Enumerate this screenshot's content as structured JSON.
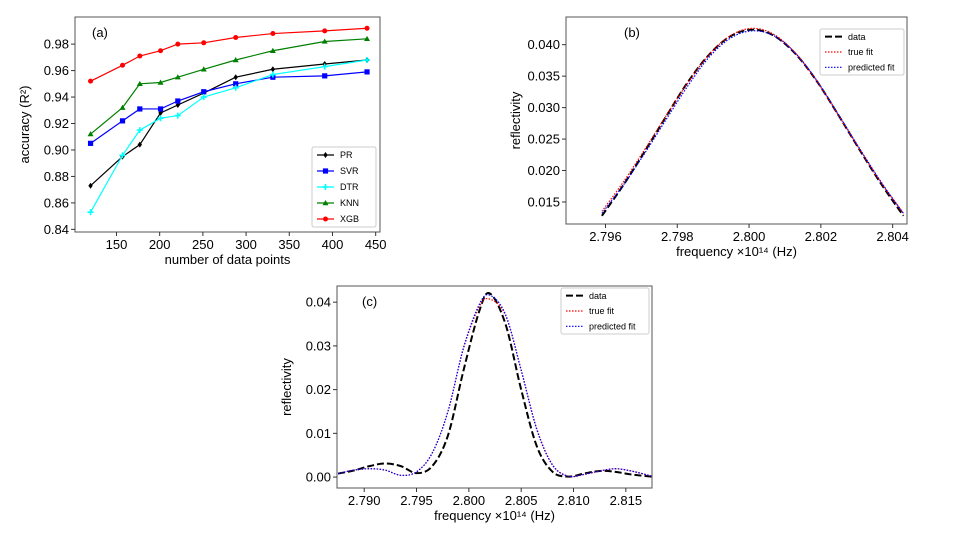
{
  "chart_data": [
    {
      "type": "line",
      "panel_label": "(a)",
      "xlabel": "number of data points",
      "ylabel": "accuracy (R²)",
      "xlim": [
        102,
        455
      ],
      "ylim": [
        0.838,
        1.0005
      ],
      "xticks": [
        150,
        200,
        250,
        300,
        350,
        400,
        450
      ],
      "yticks": [
        0.84,
        0.86,
        0.88,
        0.9,
        0.92,
        0.94,
        0.96,
        0.98
      ],
      "ytick_decimals": 2,
      "legend_position": "bottom-right",
      "grid": false,
      "x": [
        120,
        157,
        177,
        201,
        221,
        251,
        288,
        331,
        391,
        440
      ],
      "series": [
        {
          "name": "PR",
          "color": "#000000",
          "marker": "diamond",
          "values": [
            0.873,
            0.895,
            0.904,
            0.928,
            0.934,
            0.943,
            0.955,
            0.961,
            0.965,
            0.968
          ]
        },
        {
          "name": "SVR",
          "color": "#0000ff",
          "marker": "square",
          "values": [
            0.905,
            0.922,
            0.931,
            0.931,
            0.937,
            0.944,
            0.95,
            0.955,
            0.956,
            0.959
          ]
        },
        {
          "name": "DTR",
          "color": "#00ffff",
          "marker": "plus",
          "values": [
            0.853,
            0.896,
            0.915,
            0.924,
            0.926,
            0.94,
            0.947,
            0.957,
            0.963,
            0.968
          ]
        },
        {
          "name": "KNN",
          "color": "#008000",
          "marker": "triangle",
          "values": [
            0.912,
            0.932,
            0.95,
            0.951,
            0.955,
            0.961,
            0.968,
            0.975,
            0.982,
            0.984
          ]
        },
        {
          "name": "XGB",
          "color": "#ff0000",
          "marker": "circle",
          "values": [
            0.952,
            0.964,
            0.971,
            0.975,
            0.98,
            0.981,
            0.985,
            0.988,
            0.99,
            0.992
          ]
        }
      ]
    },
    {
      "type": "line",
      "panel_label": "(b)",
      "xlabel": "frequency ×10¹⁴ (Hz)",
      "ylabel": "reflectivity",
      "xlim": [
        2.7949,
        2.8044
      ],
      "ylim": [
        0.0115,
        0.0444
      ],
      "xticks": [
        2.796,
        2.798,
        2.8,
        2.802,
        2.804
      ],
      "yticks": [
        0.015,
        0.02,
        0.025,
        0.03,
        0.035,
        0.04
      ],
      "xtick_decimals": 3,
      "ytick_decimals": 3,
      "legend_position": "top-right",
      "grid": false,
      "x": [
        2.7959,
        2.7965,
        2.7971,
        2.7977,
        2.7983,
        2.7989,
        2.7995,
        2.8001,
        2.8007,
        2.8013,
        2.8019,
        2.8025,
        2.8031,
        2.8037,
        2.8043
      ],
      "series": [
        {
          "name": "data",
          "color": "#000000",
          "style": "dashed",
          "values": [
            0.0128,
            0.0177,
            0.0231,
            0.0287,
            0.0341,
            0.0385,
            0.0414,
            0.0424,
            0.0414,
            0.0385,
            0.0341,
            0.0287,
            0.0231,
            0.0177,
            0.0128
          ]
        },
        {
          "name": "true fit",
          "color": "#ff0000",
          "style": "dotted",
          "values": [
            0.0135,
            0.0182,
            0.0234,
            0.0288,
            0.034,
            0.0385,
            0.0415,
            0.0426,
            0.0416,
            0.0386,
            0.0341,
            0.0287,
            0.0232,
            0.0179,
            0.0132
          ]
        },
        {
          "name": "predicted fit",
          "color": "#0000ff",
          "style": "dotted",
          "values": [
            0.0132,
            0.0177,
            0.0228,
            0.0282,
            0.0335,
            0.0381,
            0.0411,
            0.0422,
            0.0414,
            0.0386,
            0.0342,
            0.0288,
            0.0233,
            0.018,
            0.0132
          ]
        }
      ]
    },
    {
      "type": "line",
      "panel_label": "(c)",
      "xlabel": "frequency ×10¹⁴ (Hz)",
      "ylabel": "reflectivity",
      "xlim": [
        2.7874,
        2.8175
      ],
      "ylim": [
        -0.0025,
        0.0437
      ],
      "xticks": [
        2.79,
        2.795,
        2.8,
        2.805,
        2.81,
        2.815
      ],
      "yticks": [
        0.0,
        0.01,
        0.02,
        0.03,
        0.04
      ],
      "xtick_decimals": 3,
      "ytick_decimals": 2,
      "legend_position": "top-right",
      "grid": false,
      "x": [
        2.7875,
        2.789,
        2.7905,
        2.792,
        2.7935,
        2.795,
        2.7965,
        2.798,
        2.7995,
        2.801,
        2.802,
        2.8035,
        2.805,
        2.8065,
        2.808,
        2.8095,
        2.811,
        2.8125,
        2.814,
        2.8155,
        2.8175
      ],
      "series": [
        {
          "name": "data",
          "color": "#000000",
          "style": "dashed",
          "values": [
            0.0008,
            0.0015,
            0.0025,
            0.0031,
            0.0025,
            0.0009,
            0.0025,
            0.0095,
            0.0245,
            0.038,
            0.042,
            0.035,
            0.02,
            0.007,
            0.0012,
            0.0001,
            0.0008,
            0.0014,
            0.0012,
            0.0006,
            0.0001
          ]
        },
        {
          "name": "true fit",
          "color": "#ff0000",
          "style": "dotted",
          "values": [
            0.0008,
            0.0016,
            0.0019,
            0.0016,
            0.0004,
            0.0012,
            0.0055,
            0.015,
            0.0295,
            0.039,
            0.0407,
            0.037,
            0.0245,
            0.011,
            0.0028,
            0.0002,
            0.0006,
            0.0014,
            0.0019,
            0.0014,
            0.0002
          ]
        },
        {
          "name": "predicted fit",
          "color": "#0000ff",
          "style": "dotted",
          "values": [
            0.0008,
            0.0016,
            0.0019,
            0.0016,
            0.0004,
            0.0012,
            0.0055,
            0.015,
            0.0297,
            0.0395,
            0.0416,
            0.0372,
            0.0244,
            0.0108,
            0.0027,
            0.0002,
            0.0006,
            0.0014,
            0.0019,
            0.0014,
            0.0002
          ]
        }
      ]
    }
  ]
}
